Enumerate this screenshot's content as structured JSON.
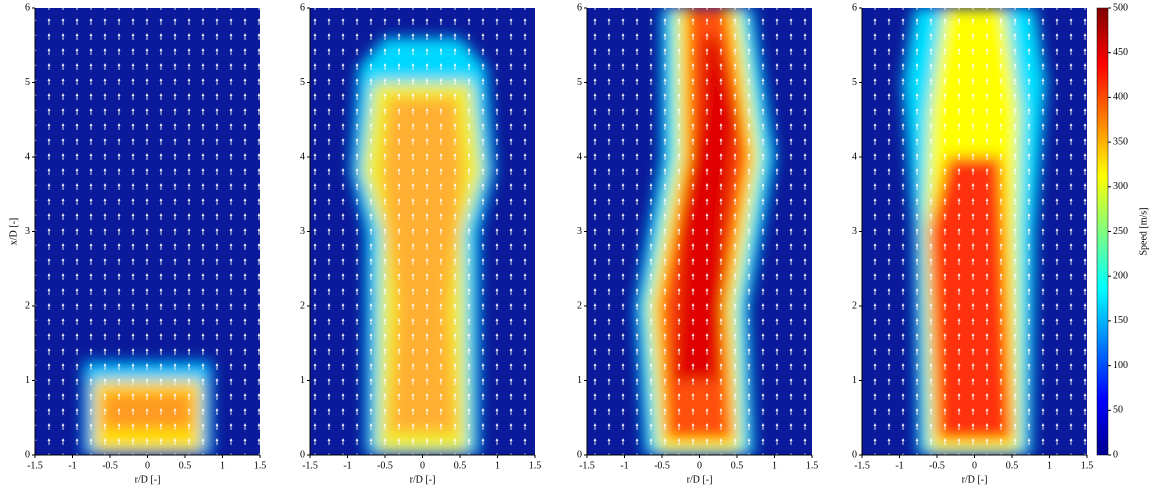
{
  "chart_data": [
    {
      "type": "field",
      "ylabel": "x/D [-]",
      "xlabel": "r/D [-]",
      "xlim": [
        -1.5,
        1.5
      ],
      "ylim": [
        0,
        6
      ],
      "xticks": [
        -1.5,
        -1,
        -0.5,
        0,
        0.5,
        1,
        1.5
      ],
      "yticks": [
        0,
        1,
        2,
        3,
        4,
        5,
        6
      ],
      "colormap": "jet"
    },
    {
      "type": "field",
      "xlabel": "r/D [-]",
      "xlim": [
        -1.5,
        1.5
      ],
      "ylim": [
        0,
        6
      ],
      "xticks": [
        -1.5,
        -1,
        -0.5,
        0,
        0.5,
        1,
        1.5
      ],
      "yticks": [
        0,
        1,
        2,
        3,
        4,
        5,
        6
      ],
      "colormap": "jet"
    },
    {
      "type": "field",
      "xlabel": "r/D [-]",
      "xlim": [
        -1.5,
        1.5
      ],
      "ylim": [
        0,
        6
      ],
      "xticks": [
        -1.5,
        -1,
        -0.5,
        0,
        0.5,
        1,
        1.5
      ],
      "yticks": [
        0,
        1,
        2,
        3,
        4,
        5,
        6
      ],
      "colormap": "jet"
    },
    {
      "type": "field",
      "xlabel": "r/D [-]",
      "xlim": [
        -1.5,
        1.5
      ],
      "ylim": [
        0,
        6
      ],
      "xticks": [
        -1.5,
        -1,
        -0.5,
        0,
        0.5,
        1,
        1.5
      ],
      "yticks": [
        0,
        1,
        2,
        3,
        4,
        5,
        6
      ],
      "colormap": "jet",
      "clabel": "Speed [m/s]",
      "clim": [
        0,
        500
      ],
      "cticks": [
        0,
        50,
        100,
        150,
        200,
        250,
        300,
        350,
        400,
        450,
        500
      ]
    }
  ]
}
